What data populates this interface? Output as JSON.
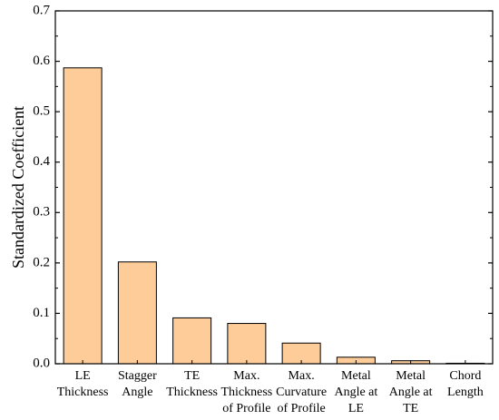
{
  "chart_data": {
    "type": "bar",
    "ylabel": "Standardized Coefficient",
    "xlabel": "",
    "ylim": [
      0,
      0.7
    ],
    "yticks": [
      "0.0",
      "0.1",
      "0.2",
      "0.3",
      "0.4",
      "0.5",
      "0.6",
      "0.7"
    ],
    "categories": [
      [
        "LE",
        "Thickness"
      ],
      [
        "Stagger",
        "Angle"
      ],
      [
        "TE",
        "Thickness"
      ],
      [
        "Max.",
        "Thickness",
        "of Profile"
      ],
      [
        "Max.",
        "Curvature",
        "of Profile"
      ],
      [
        "Metal",
        "Angle at",
        "LE"
      ],
      [
        "Metal",
        "Angle at",
        "TE"
      ],
      [
        "Chord",
        "Length"
      ]
    ],
    "values": [
      0.587,
      0.202,
      0.091,
      0.08,
      0.041,
      0.013,
      0.006,
      0.001
    ],
    "bar_color": "#fdcc98",
    "bar_edge_color": "#000000",
    "grid": false
  }
}
